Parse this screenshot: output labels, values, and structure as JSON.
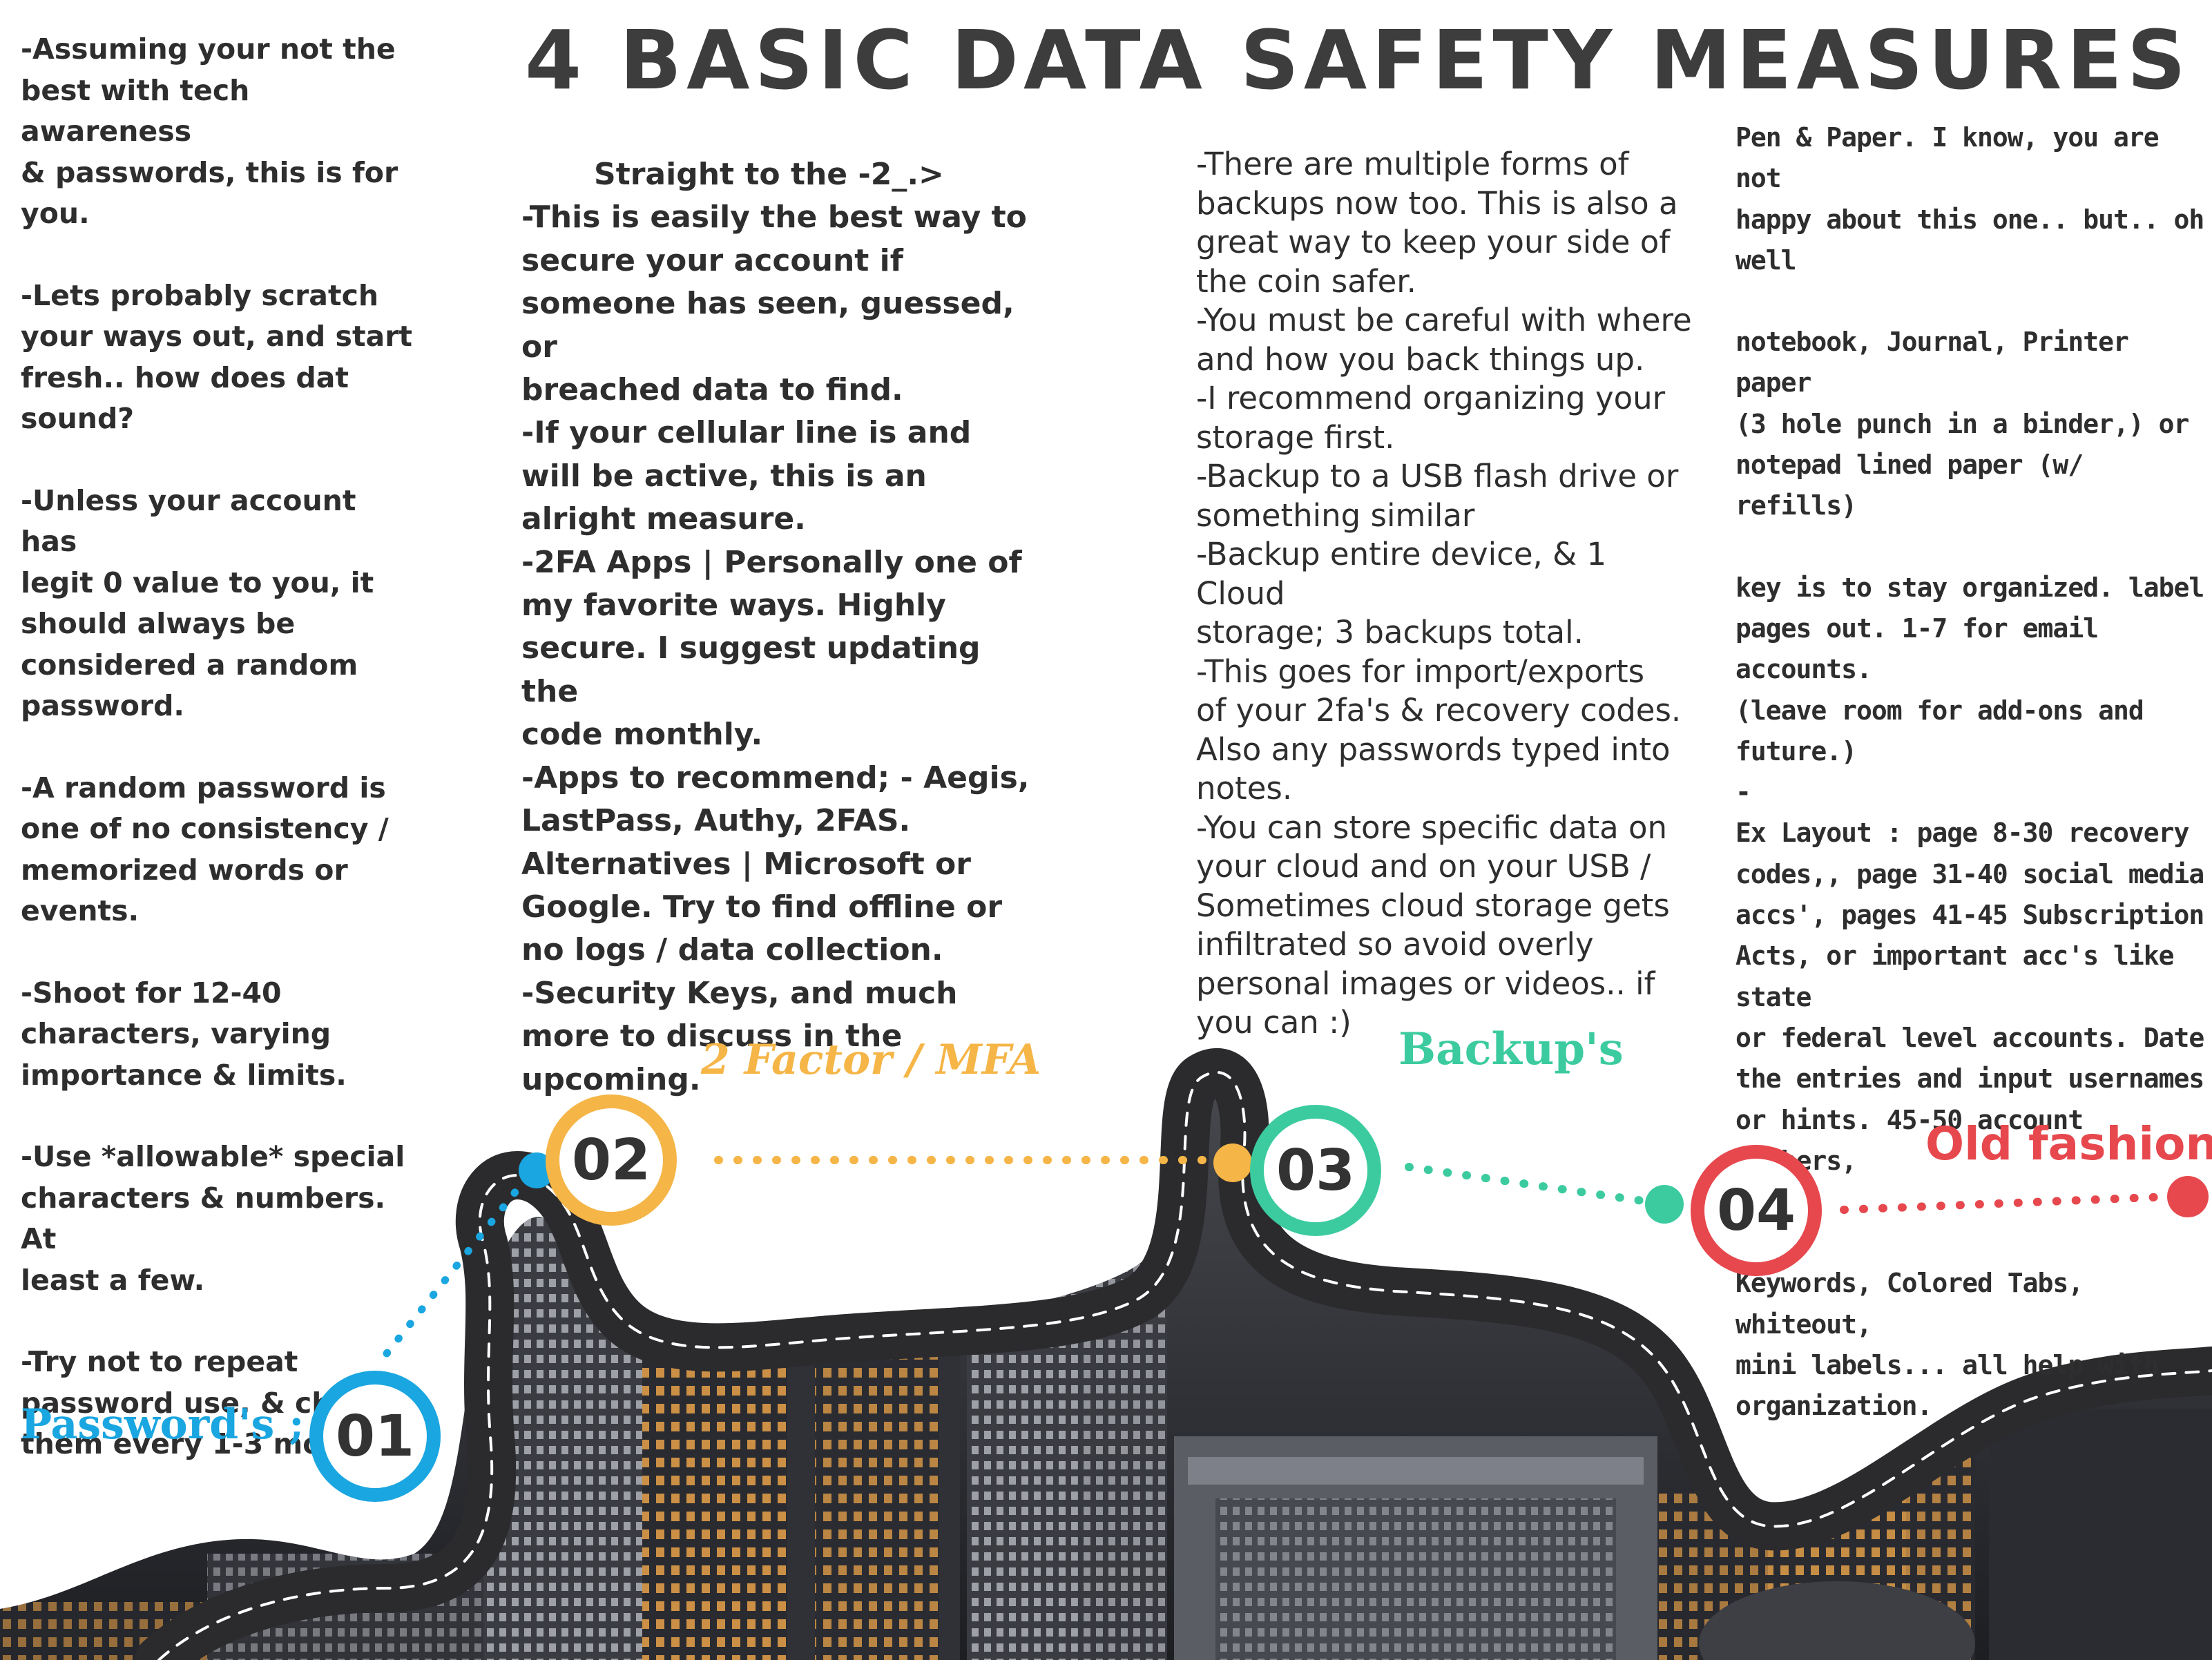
{
  "title": "4 BASIC DATA SAFETY MEASURES",
  "column1": [
    "-Assuming your not the\nbest with tech awareness\n& passwords, this is for\nyou.",
    "-Lets probably scratch\nyour ways out, and start\nfresh.. how does dat\nsound?",
    "-Unless your account has\nlegit 0 value to you, it\nshould always be\nconsidered a random\npassword.",
    "-A random password is\none of no consistency /\nmemorized words or\nevents.",
    "-Shoot for 12-40\ncharacters, varying\nimportance & limits.",
    "-Use *allowable* special\ncharacters & numbers. At\nleast a few.",
    "-Try not to repeat\npassword use, & change\nthem every 1-3 months."
  ],
  "column2": {
    "heading": "Straight to the -2_.>",
    "body": "-This is easily the best way to\nsecure your account if\nsomeone has seen, guessed, or\nbreached data to find.\n-If your cellular line is and\nwill be active, this is an\nalright measure.\n-2FA Apps | Personally one of\nmy favorite ways. Highly\nsecure. I suggest updating the\ncode monthly.\n-Apps to recommend; - Aegis,\nLastPass, Authy, 2FAS.\nAlternatives | Microsoft or\nGoogle. Try to find offline or\nno logs / data collection.\n-Security Keys, and much\nmore to discuss in the\nupcoming."
  },
  "column3": "-There are multiple forms of\nbackups now too. This is also a\ngreat way to keep your side of\nthe coin safer.\n-You must be careful with where\nand how you back things up.\n-I recommend organizing your\nstorage first.\n-Backup to a USB flash drive or\nsomething similar\n-Backup entire device, & 1 Cloud\nstorage; 3 backups total.\n-This goes for import/exports\nof your 2fa's & recovery codes.\nAlso any passwords typed into\nnotes.\n-You can store specific data on\nyour cloud and on your USB /\nSometimes cloud storage gets\ninfiltrated so avoid overly\npersonal images or videos.. if\nyou can :)",
  "column4": [
    "Pen & Paper. I know, you are not\nhappy about this one.. but.. oh well",
    "notebook, Journal, Printer paper\n(3 hole punch in a binder,) or\nnotepad lined paper (w/ refills)",
    "key is to stay organized. label\npages out. 1-7 for email accounts.\n(leave room for add-ons and\nfuture.)\n-",
    "Ex Layout : page 8-30 recovery\ncodes,, page 31-40 social media\naccs', pages 41-45 Subscription\nActs, or important acc's like state\nor federal level accounts. Date\nthe entries and input usernames\nor hints. 45-50 account numbers,\netc.",
    "Keywords, Colored Tabs, whiteout,\nmini labels... all help with\norganization."
  ],
  "steps": [
    {
      "number": "01",
      "label": "Password's ;"
    },
    {
      "number": "02",
      "label": "2 Factor / MFA"
    },
    {
      "number": "03",
      "label": "Backup's"
    },
    {
      "number": "04",
      "label": "Old fashioned"
    }
  ],
  "colors": {
    "step1": "#1aa6e0",
    "step2": "#f5b547",
    "step3": "#3ccb9f",
    "step4": "#e6484d",
    "road": "#2b2b2e",
    "text": "#2e2e2e"
  },
  "icons": {
    "background": "city-skyline-night-photo",
    "road": "winding-road-illustration"
  }
}
